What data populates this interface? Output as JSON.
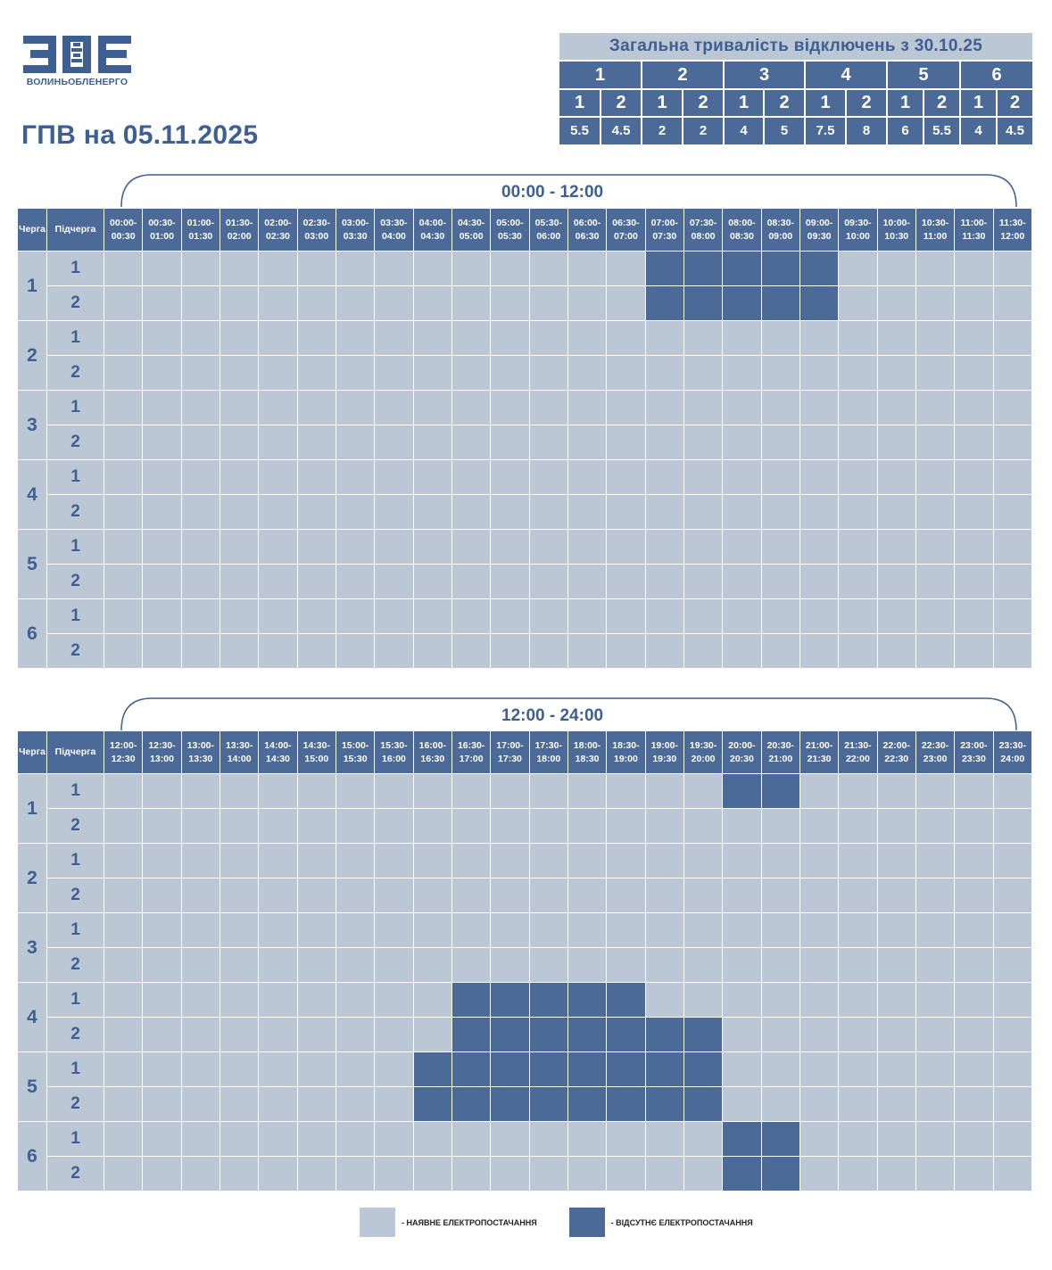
{
  "logo": {
    "text": "ВОЛИНЬОБЛЕНЕРГО"
  },
  "page_title": "ГПВ на 05.11.2025",
  "colors": {
    "available": "#bcc7d6",
    "outage": "#4b6a98",
    "text": "#3d5f91"
  },
  "summary": {
    "title": "Загальна тривалість відключень з 30.10.25",
    "queues": [
      "1",
      "2",
      "3",
      "4",
      "5",
      "6"
    ],
    "subqueues": [
      "1",
      "2",
      "1",
      "2",
      "1",
      "2",
      "1",
      "2",
      "1",
      "2",
      "1",
      "2"
    ],
    "values": [
      "5.5",
      "4.5",
      "2",
      "2",
      "4",
      "5",
      "7.5",
      "8",
      "6",
      "5.5",
      "4",
      "4.5"
    ]
  },
  "header_labels": {
    "queue": "Черга",
    "subqueue": "Підчерга"
  },
  "sections": [
    {
      "range_label": "00:00 - 12:00",
      "slots": [
        "00:00-00:30",
        "00:30-01:00",
        "01:00-01:30",
        "01:30-02:00",
        "02:00-02:30",
        "02:30-03:00",
        "03:00-03:30",
        "03:30-04:00",
        "04:00-04:30",
        "04:30-05:00",
        "05:00-05:30",
        "05:30-06:00",
        "06:00-06:30",
        "06:30-07:00",
        "07:00-07:30",
        "07:30-08:00",
        "08:00-08:30",
        "08:30-09:00",
        "09:00-09:30",
        "09:30-10:00",
        "10:00-10:30",
        "10:30-11:00",
        "11:00-11:30",
        "11:30-12:00"
      ],
      "rows": [
        {
          "queue": "1",
          "sub": "1",
          "outage": [
            14,
            15,
            16,
            17,
            18
          ]
        },
        {
          "queue": "1",
          "sub": "2",
          "outage": [
            14,
            15,
            16,
            17,
            18
          ]
        },
        {
          "queue": "2",
          "sub": "1",
          "outage": []
        },
        {
          "queue": "2",
          "sub": "2",
          "outage": []
        },
        {
          "queue": "3",
          "sub": "1",
          "outage": []
        },
        {
          "queue": "3",
          "sub": "2",
          "outage": []
        },
        {
          "queue": "4",
          "sub": "1",
          "outage": []
        },
        {
          "queue": "4",
          "sub": "2",
          "outage": []
        },
        {
          "queue": "5",
          "sub": "1",
          "outage": []
        },
        {
          "queue": "5",
          "sub": "2",
          "outage": []
        },
        {
          "queue": "6",
          "sub": "1",
          "outage": []
        },
        {
          "queue": "6",
          "sub": "2",
          "outage": []
        }
      ]
    },
    {
      "range_label": "12:00 - 24:00",
      "slots": [
        "12:00-12:30",
        "12:30-13:00",
        "13:00-13:30",
        "13:30-14:00",
        "14:00-14:30",
        "14:30-15:00",
        "15:00-15:30",
        "15:30-16:00",
        "16:00-16:30",
        "16:30-17:00",
        "17:00-17:30",
        "17:30-18:00",
        "18:00-18:30",
        "18:30-19:00",
        "19:00-19:30",
        "19:30-20:00",
        "20:00-20:30",
        "20:30-21:00",
        "21:00-21:30",
        "21:30-22:00",
        "22:00-22:30",
        "22:30-23:00",
        "23:00-23:30",
        "23:30-24:00"
      ],
      "rows": [
        {
          "queue": "1",
          "sub": "1",
          "outage": [
            16,
            17
          ]
        },
        {
          "queue": "1",
          "sub": "2",
          "outage": []
        },
        {
          "queue": "2",
          "sub": "1",
          "outage": []
        },
        {
          "queue": "2",
          "sub": "2",
          "outage": []
        },
        {
          "queue": "3",
          "sub": "1",
          "outage": []
        },
        {
          "queue": "3",
          "sub": "2",
          "outage": []
        },
        {
          "queue": "4",
          "sub": "1",
          "outage": [
            9,
            10,
            11,
            12,
            13
          ]
        },
        {
          "queue": "4",
          "sub": "2",
          "outage": [
            9,
            10,
            11,
            12,
            13,
            14,
            15
          ]
        },
        {
          "queue": "5",
          "sub": "1",
          "outage": [
            8,
            9,
            10,
            11,
            12,
            13,
            14,
            15
          ]
        },
        {
          "queue": "5",
          "sub": "2",
          "outage": [
            8,
            9,
            10,
            11,
            12,
            13,
            14,
            15
          ]
        },
        {
          "queue": "6",
          "sub": "1",
          "outage": [
            16,
            17
          ]
        },
        {
          "queue": "6",
          "sub": "2",
          "outage": [
            16,
            17
          ]
        }
      ]
    }
  ],
  "legend": {
    "available_label": "- НАЯВНЕ ЕЛЕКТРОПОСТАЧАННЯ",
    "outage_label": "- ВІДСУТНЄ ЕЛЕКТРОПОСТАЧАННЯ"
  }
}
